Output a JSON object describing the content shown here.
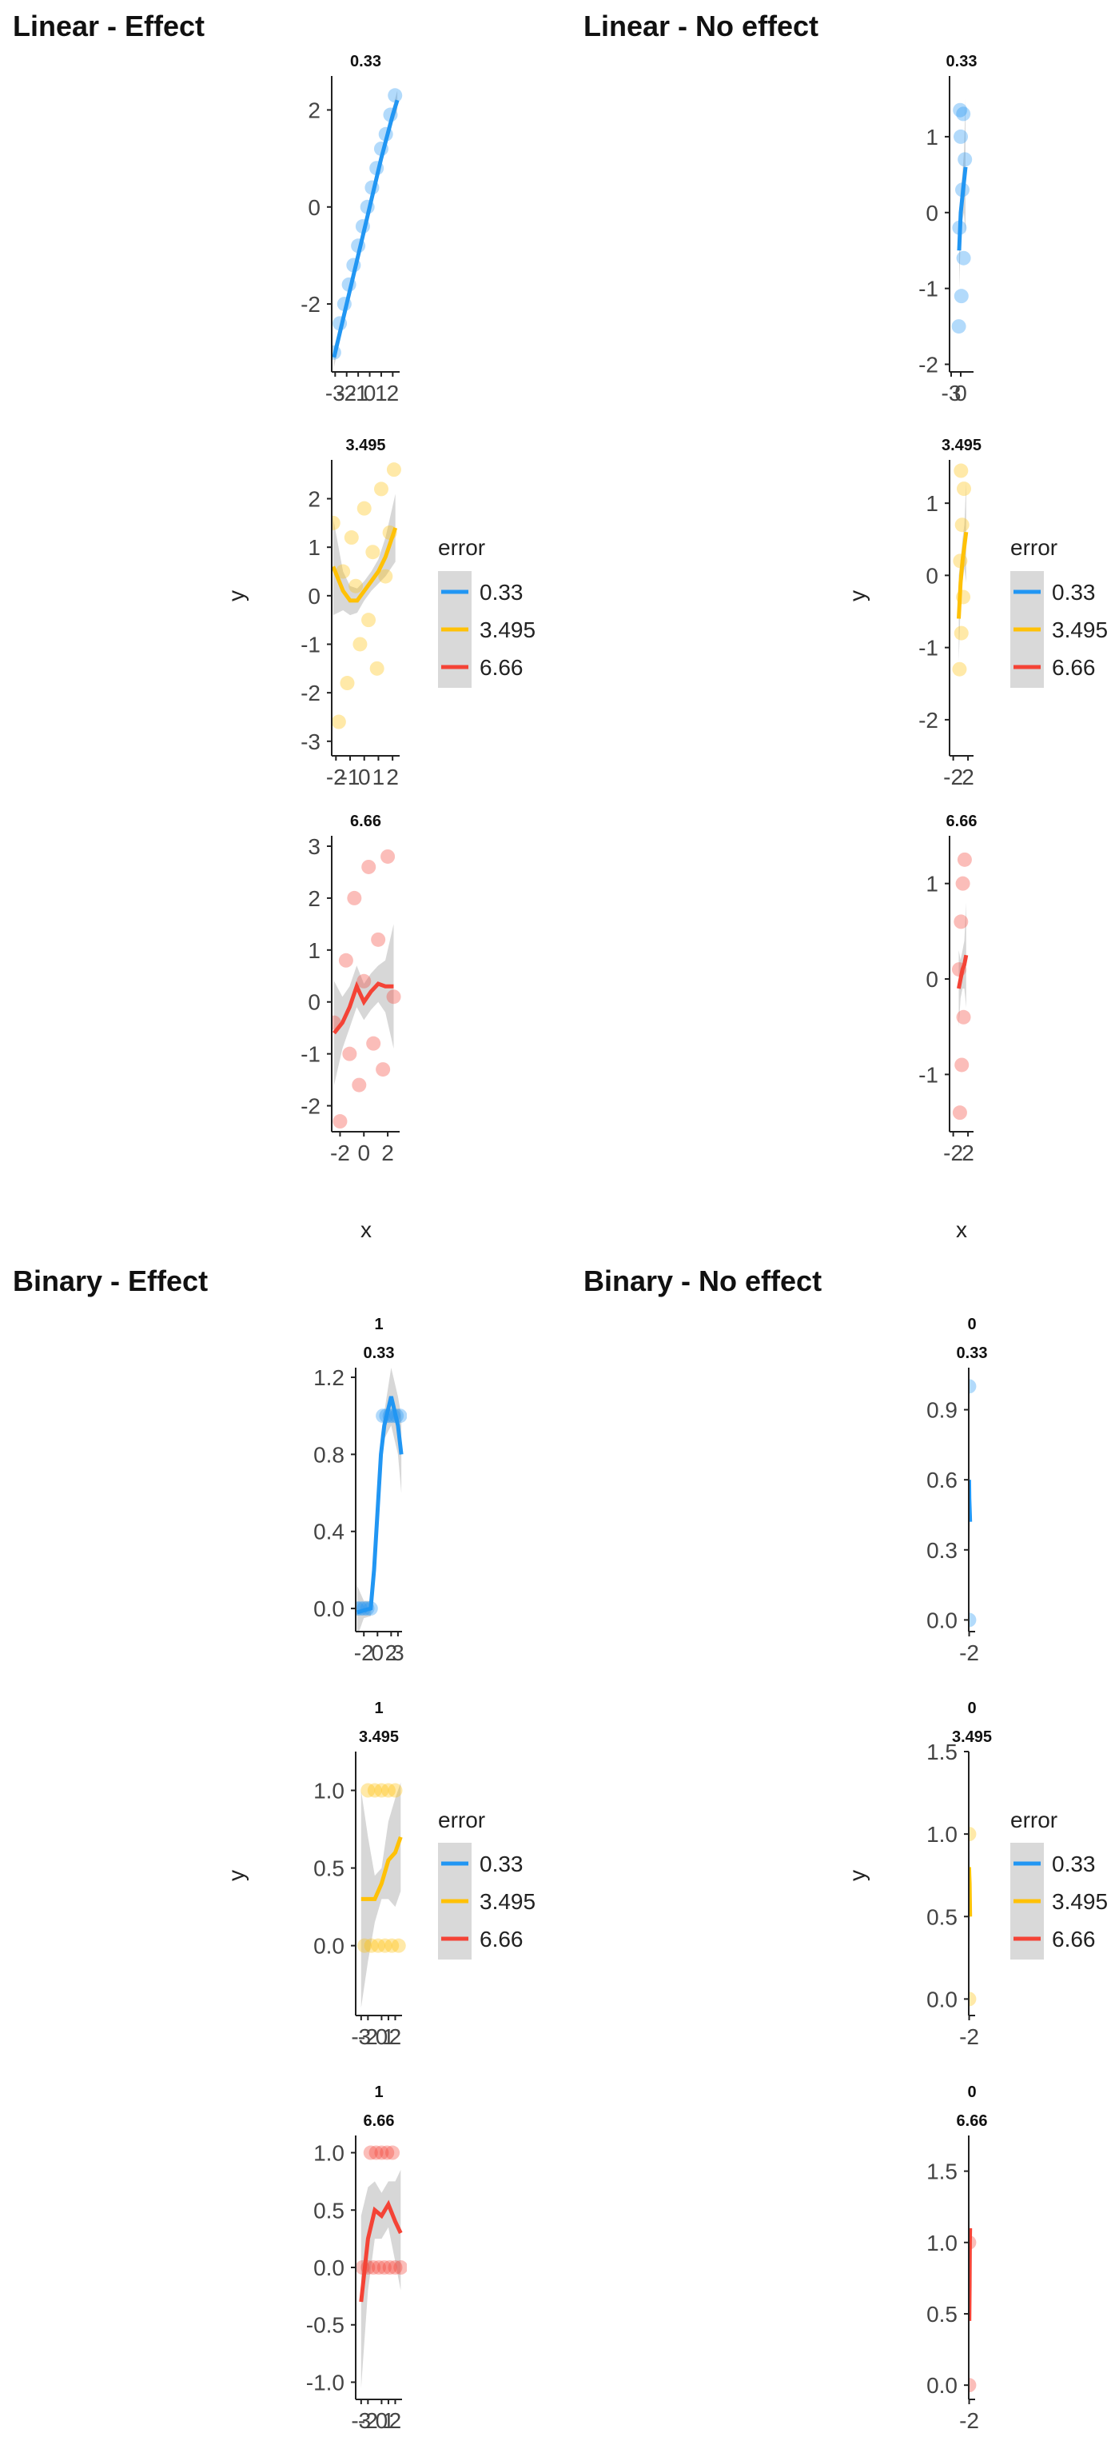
{
  "figure": {
    "panels": [
      {
        "title": "Linear - Effect"
      },
      {
        "title": "Linear - No effect"
      },
      {
        "title": "Binary - Effect"
      },
      {
        "title": "Binary - No effect"
      }
    ],
    "legend_title": "error",
    "legend_items": [
      "0.33",
      "3.495",
      "6.66"
    ],
    "xlabel": "x",
    "ylabel": "y",
    "colors": {
      "0.33": "#2196F3",
      "3.495": "#FFC107",
      "6.66": "#F44336",
      "band": "#BDBDBD"
    }
  },
  "chart_data": [
    {
      "type": "scatter",
      "title": "Linear - Effect",
      "xlabel": "x",
      "ylabel": "y",
      "legend": "right",
      "legend_title": "error",
      "facets": [
        {
          "strip": "0.33",
          "xticks": [
            "-3",
            "-2",
            "-1",
            "0",
            "1",
            "2"
          ],
          "xlim": [
            -3.3,
            2.6
          ],
          "yticks": [
            "-2",
            "0",
            "2"
          ],
          "ylim": [
            -3.4,
            2.7
          ],
          "points_x": [
            -3.1,
            -2.6,
            -2.2,
            -1.8,
            -1.4,
            -1.0,
            -0.6,
            -0.2,
            0.2,
            0.6,
            1.0,
            1.4,
            1.8,
            2.2
          ],
          "points_y": [
            -3.0,
            -2.4,
            -2.0,
            -1.6,
            -1.2,
            -0.8,
            -0.4,
            0.0,
            0.4,
            0.8,
            1.2,
            1.5,
            1.9,
            2.3
          ],
          "line_x": [
            -3.1,
            -2,
            -1,
            0,
            1,
            2,
            2.4
          ],
          "line_y": [
            -3.1,
            -2.0,
            -1.0,
            0.0,
            1.0,
            1.9,
            2.2
          ],
          "band_lower": [
            -3.3,
            -2.1,
            -1.05,
            -0.05,
            0.95,
            1.75,
            2.0
          ],
          "band_upper": [
            -2.9,
            -1.9,
            -0.95,
            0.05,
            1.05,
            2.05,
            2.4
          ]
        },
        {
          "strip": "3.495",
          "xticks": [
            "-2",
            "-1",
            "0",
            "1",
            "2"
          ],
          "xlim": [
            -2.3,
            2.5
          ],
          "yticks": [
            "-3",
            "-2",
            "-1",
            "0",
            "1",
            "2"
          ],
          "ylim": [
            -3.3,
            2.8
          ],
          "points_x": [
            -2.2,
            -1.8,
            -1.5,
            -1.2,
            -0.9,
            -0.6,
            -0.3,
            0.0,
            0.3,
            0.6,
            0.9,
            1.2,
            1.5,
            1.8,
            2.1
          ],
          "points_y": [
            1.5,
            -2.6,
            0.5,
            -1.8,
            1.2,
            0.2,
            -1.0,
            1.8,
            -0.5,
            0.9,
            -1.5,
            2.2,
            0.4,
            1.3,
            2.6
          ],
          "line_x": [
            -2.2,
            -1.5,
            -1,
            -0.5,
            0,
            0.5,
            1,
            1.5,
            2.2
          ],
          "line_y": [
            0.6,
            0.1,
            -0.1,
            -0.1,
            0.1,
            0.3,
            0.5,
            0.8,
            1.4
          ],
          "band_lower": [
            -0.4,
            -0.3,
            -0.4,
            -0.35,
            -0.1,
            0.1,
            0.25,
            0.4,
            0.7
          ],
          "band_upper": [
            1.6,
            0.5,
            0.2,
            0.15,
            0.3,
            0.5,
            0.75,
            1.2,
            2.1
          ]
        },
        {
          "strip": "6.66",
          "xticks": [
            "-2",
            "0",
            "2"
          ],
          "xlim": [
            -2.7,
            3.0
          ],
          "yticks": [
            "-2",
            "-1",
            "0",
            "1",
            "2",
            "3"
          ],
          "ylim": [
            -2.5,
            3.2
          ],
          "points_x": [
            -2.5,
            -2.0,
            -1.5,
            -1.2,
            -0.8,
            -0.4,
            0.0,
            0.4,
            0.8,
            1.2,
            1.6,
            2.0,
            2.5
          ],
          "points_y": [
            -0.4,
            -2.3,
            0.8,
            -1.0,
            2.0,
            -1.6,
            0.4,
            2.6,
            -0.8,
            1.2,
            -1.3,
            2.8,
            0.1
          ],
          "line_x": [
            -2.5,
            -1.8,
            -1.2,
            -0.6,
            0,
            0.6,
            1.2,
            1.8,
            2.5
          ],
          "line_y": [
            -0.6,
            -0.4,
            -0.1,
            0.3,
            0.0,
            0.2,
            0.35,
            0.3,
            0.3
          ],
          "band_lower": [
            -1.6,
            -0.9,
            -0.5,
            -0.1,
            -0.35,
            -0.15,
            0.0,
            -0.2,
            -0.9
          ],
          "band_upper": [
            0.4,
            0.1,
            0.3,
            0.7,
            0.35,
            0.55,
            0.7,
            0.8,
            1.5
          ]
        }
      ]
    },
    {
      "type": "scatter",
      "title": "Linear - No effect",
      "xlabel": "x",
      "ylabel": "y",
      "legend": "right",
      "legend_title": "error",
      "facets": [
        {
          "strip": "0.33",
          "xticks": [
            "-3",
            "0"
          ],
          "xlim": [
            -3.5,
            4.0
          ],
          "yticks": [
            "-2",
            "-1",
            "0",
            "1"
          ],
          "ylim": [
            -2.1,
            1.8
          ],
          "points_x": [
            -0.6,
            0.2,
            0.9,
            -0.4,
            0.5,
            1.3,
            0.0,
            0.8,
            -0.2
          ],
          "points_y": [
            -1.5,
            -1.1,
            -0.6,
            -0.2,
            0.3,
            0.7,
            1.0,
            1.3,
            1.35
          ],
          "line_x": [
            -0.5,
            0,
            0.5,
            1.0,
            1.5
          ],
          "line_y": [
            -0.5,
            0.0,
            0.2,
            0.4,
            0.6
          ],
          "band_lower": [
            -1.0,
            -0.3,
            -0.1,
            0.0,
            -0.3
          ],
          "band_upper": [
            0.0,
            0.3,
            0.5,
            0.8,
            1.5
          ]
        },
        {
          "strip": "3.495",
          "xticks": [
            "-2",
            "2"
          ],
          "xlim": [
            -3.0,
            3.5
          ],
          "yticks": [
            "-2",
            "-1",
            "0",
            "1"
          ],
          "ylim": [
            -2.5,
            1.6
          ],
          "points_x": [
            -0.3,
            0.2,
            0.7,
            -0.1,
            0.4,
            0.9,
            0.1
          ],
          "points_y": [
            -1.3,
            -0.8,
            -0.3,
            0.2,
            0.7,
            1.2,
            1.45
          ],
          "line_x": [
            -0.5,
            0,
            0.5,
            1.0,
            1.5
          ],
          "line_y": [
            -0.6,
            -0.1,
            0.2,
            0.4,
            0.6
          ],
          "band_lower": [
            -1.2,
            -0.4,
            -0.1,
            0.1,
            -0.1
          ],
          "band_upper": [
            0.0,
            0.2,
            0.5,
            0.7,
            1.3
          ]
        },
        {
          "strip": "6.66",
          "xticks": [
            "-2",
            "2"
          ],
          "xlim": [
            -3.0,
            3.5
          ],
          "yticks": [
            "-1",
            "0",
            "1"
          ],
          "ylim": [
            -1.6,
            1.5
          ],
          "points_x": [
            -0.2,
            0.3,
            0.8,
            -0.4,
            0.1,
            0.6,
            1.1
          ],
          "points_y": [
            -1.4,
            -0.9,
            -0.4,
            0.1,
            0.6,
            1.0,
            1.25
          ],
          "line_x": [
            -0.5,
            0,
            0.5,
            1.0,
            1.5
          ],
          "line_y": [
            -0.1,
            0.0,
            0.1,
            0.15,
            0.25
          ],
          "band_lower": [
            -0.5,
            -0.2,
            -0.1,
            -0.1,
            -0.3
          ],
          "band_upper": [
            0.3,
            0.2,
            0.3,
            0.4,
            0.8
          ]
        }
      ]
    },
    {
      "type": "scatter",
      "title": "Binary - Effect",
      "xlabel": "x",
      "ylabel": "y",
      "legend": "right",
      "legend_title": "error",
      "outer_strip": "1",
      "facets": [
        {
          "strip": "0.33",
          "xticks": [
            "-2",
            "0",
            "2",
            "3"
          ],
          "xlim": [
            -3.2,
            3.6
          ],
          "yticks": [
            "0.0",
            "0.4",
            "0.8",
            "1.2"
          ],
          "ylim": [
            -0.12,
            1.25
          ],
          "points_x": [
            -3.0,
            -2.5,
            -2.0,
            -1.5,
            -1.0,
            0.8,
            1.3,
            1.8,
            2.3,
            2.8,
            3.3
          ],
          "points_y": [
            0,
            0,
            0,
            0,
            0,
            1,
            1,
            1,
            1,
            1,
            1
          ],
          "line_x": [
            -3.0,
            -2.0,
            -1.0,
            -0.5,
            0,
            0.5,
            1.0,
            2.0,
            3.0,
            3.5
          ],
          "line_y": [
            -0.02,
            -0.01,
            0.0,
            0.2,
            0.5,
            0.8,
            0.95,
            1.1,
            0.95,
            0.8
          ],
          "band_lower": [
            -0.15,
            -0.05,
            -0.04,
            0.1,
            0.4,
            0.7,
            0.88,
            0.95,
            0.8,
            0.6
          ],
          "band_upper": [
            0.12,
            0.04,
            0.04,
            0.3,
            0.6,
            0.9,
            1.02,
            1.25,
            1.1,
            1.0
          ]
        },
        {
          "strip": "3.495",
          "xticks": [
            "-3",
            "-2",
            "0",
            "1",
            "2"
          ],
          "xlim": [
            -3.8,
            3.0
          ],
          "yticks": [
            "0.0",
            "0.5",
            "1.0"
          ],
          "ylim": [
            -0.45,
            1.25
          ],
          "points_x": [
            -2.5,
            -1.5,
            -0.5,
            0.5,
            1.5,
            2.5,
            -2.0,
            -1.0,
            0.0,
            1.0,
            2.0
          ],
          "points_y": [
            0,
            0,
            0,
            0,
            0,
            0,
            1,
            1,
            1,
            1,
            1
          ],
          "line_x": [
            -3.0,
            -2.0,
            -1.0,
            0,
            1.0,
            2.0,
            2.8
          ],
          "line_y": [
            0.3,
            0.3,
            0.3,
            0.4,
            0.55,
            0.6,
            0.7
          ],
          "band_lower": [
            -0.4,
            -0.1,
            0.15,
            0.3,
            0.3,
            0.25,
            0.35
          ],
          "band_upper": [
            1.0,
            0.7,
            0.45,
            0.5,
            0.8,
            0.95,
            1.05
          ]
        },
        {
          "strip": "6.66",
          "xticks": [
            "-3",
            "-2",
            "0",
            "1",
            "2"
          ],
          "xlim": [
            -3.8,
            3.0
          ],
          "yticks": [
            "-1.0",
            "-0.5",
            "0.0",
            "0.5",
            "1.0"
          ],
          "ylim": [
            -1.15,
            1.15
          ],
          "points_x": [
            -2.8,
            -2.0,
            -1.2,
            -0.4,
            0.4,
            1.2,
            2.0,
            2.8,
            -1.6,
            -0.8,
            0.0,
            0.8,
            1.6
          ],
          "points_y": [
            0,
            0,
            0,
            0,
            0,
            0,
            0,
            0,
            1,
            1,
            1,
            1,
            1
          ],
          "line_x": [
            -3.0,
            -2.0,
            -1.0,
            0,
            1.0,
            2.0,
            2.8
          ],
          "line_y": [
            -0.3,
            0.25,
            0.5,
            0.45,
            0.55,
            0.4,
            0.3
          ],
          "band_lower": [
            -1.05,
            -0.2,
            0.25,
            0.25,
            0.35,
            0.05,
            -0.2
          ],
          "band_upper": [
            0.45,
            0.7,
            0.75,
            0.65,
            0.75,
            0.75,
            0.85
          ]
        }
      ]
    },
    {
      "type": "scatter",
      "title": "Binary - No effect",
      "xlabel": "x",
      "ylabel": "y",
      "legend": "right",
      "legend_title": "error",
      "outer_strip": "0",
      "facets": [
        {
          "strip": "0.33",
          "xticks": [
            "-2"
          ],
          "xlim": [
            -3.0,
            12.0
          ],
          "yticks": [
            "0.0",
            "0.3",
            "0.6",
            "0.9"
          ],
          "ylim": [
            -0.05,
            1.08
          ],
          "points_x": [
            -2.2,
            -2.2
          ],
          "points_y": [
            1,
            0
          ],
          "line_x": [
            -2.2,
            -1.6,
            -1.0,
            -0.4,
            0.2
          ],
          "line_y": [
            0.6,
            0.52,
            0.48,
            0.45,
            0.42
          ],
          "band_lower": [
            0.5,
            0.46,
            0.42,
            0.36,
            0.3
          ],
          "band_upper": [
            0.7,
            0.58,
            0.54,
            0.54,
            0.54
          ]
        },
        {
          "strip": "3.495",
          "xticks": [
            "-2"
          ],
          "xlim": [
            -3.0,
            12.0
          ],
          "yticks": [
            "0.0",
            "0.5",
            "1.0",
            "1.5"
          ],
          "ylim": [
            -0.1,
            1.5
          ],
          "points_x": [
            -2.2,
            -2.2
          ],
          "points_y": [
            1,
            0
          ],
          "line_x": [
            -2.2,
            -1.6,
            -1.0,
            -0.4,
            0.2
          ],
          "line_y": [
            0.8,
            0.75,
            0.7,
            0.6,
            0.5
          ],
          "band_lower": [
            0.6,
            0.6,
            0.5,
            0.4,
            0.3
          ],
          "band_upper": [
            1.0,
            0.9,
            0.9,
            0.8,
            0.7
          ]
        },
        {
          "strip": "6.66",
          "xticks": [
            "-2"
          ],
          "xlim": [
            -3.0,
            12.0
          ],
          "yticks": [
            "0.0",
            "0.5",
            "1.0",
            "1.5"
          ],
          "ylim": [
            -0.1,
            1.75
          ],
          "points_x": [
            -2.2,
            -2.2
          ],
          "points_y": [
            1,
            0
          ],
          "line_x": [
            -2.2,
            -1.6,
            -1.0,
            -0.4,
            0.2
          ],
          "line_y": [
            0.55,
            0.45,
            0.7,
            1.0,
            1.1
          ],
          "band_lower": [
            0.35,
            0.3,
            0.5,
            0.8,
            0.9
          ],
          "band_upper": [
            0.75,
            0.6,
            0.9,
            1.2,
            1.3
          ]
        }
      ]
    }
  ]
}
